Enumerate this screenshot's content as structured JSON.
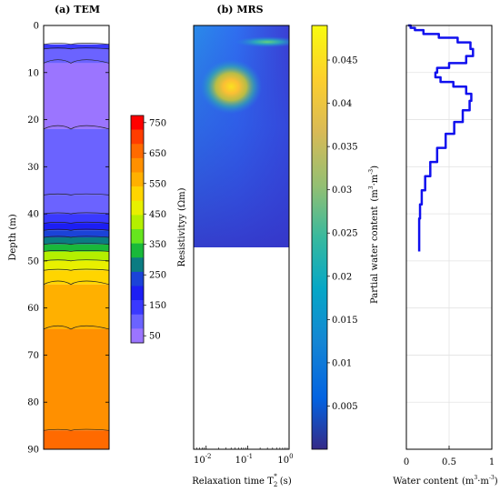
{
  "chart_data": [
    {
      "type": "area",
      "title": "(a) TEM",
      "ylabel": "Depth (m)",
      "ylim": [
        0,
        90
      ],
      "yticks": [
        0,
        10,
        20,
        30,
        40,
        50,
        60,
        70,
        80,
        90
      ],
      "series": [
        {
          "values": [
            {
              "top": 4,
              "bottom": 5,
              "resistivity": 130
            },
            {
              "top": 5,
              "bottom": 8,
              "resistivity": 110
            },
            {
              "top": 8,
              "bottom": 22,
              "resistivity": 60
            },
            {
              "top": 22,
              "bottom": 36,
              "resistivity": 90
            },
            {
              "top": 36,
              "bottom": 40,
              "resistivity": 110
            },
            {
              "top": 40,
              "bottom": 42,
              "resistivity": 150
            },
            {
              "top": 42,
              "bottom": 43.5,
              "resistivity": 200
            },
            {
              "top": 43.5,
              "bottom": 45,
              "resistivity": 250
            },
            {
              "top": 45,
              "bottom": 46.5,
              "resistivity": 300
            },
            {
              "top": 46.5,
              "bottom": 48,
              "resistivity": 350
            },
            {
              "top": 48,
              "bottom": 50,
              "resistivity": 420
            },
            {
              "top": 50,
              "bottom": 52,
              "resistivity": 470
            },
            {
              "top": 52,
              "bottom": 55,
              "resistivity": 520
            },
            {
              "top": 55,
              "bottom": 64.5,
              "resistivity": 560
            },
            {
              "top": 64.5,
              "bottom": 86,
              "resistivity": 620
            },
            {
              "top": 86,
              "bottom": 90,
              "resistivity": 650
            }
          ]
        }
      ],
      "colorbar": {
        "label": "Resistivityy (Ωm)",
        "ticks": [
          "750",
          "650",
          "550",
          "450",
          "350",
          "250",
          "150",
          "50"
        ],
        "colors": [
          "#ff0000",
          "#ff3d00",
          "#ff6a00",
          "#ff9000",
          "#ffb000",
          "#ffd500",
          "#e8f000",
          "#b4ef00",
          "#66e51e",
          "#19b93a",
          "#0b7c82",
          "#1b43d8",
          "#1c1ef4",
          "#3a39ff",
          "#6b63ff",
          "#9b75ff"
        ]
      }
    },
    {
      "type": "heatmap",
      "title": "(b) MRS",
      "xlabel": "Relaxation time T",
      "xlabel_sub": "2",
      "xlabel_sup": "*",
      "xlabel_unit": "(s)",
      "xscale": "log",
      "xlim": [
        0.005,
        1
      ],
      "xticks": [
        {
          "base": "10",
          "exp": "-2"
        },
        {
          "base": "10",
          "exp": "-1"
        },
        {
          "base": "10",
          "exp": "0"
        }
      ],
      "ylim": [
        0,
        90
      ],
      "data_depth_max": 48,
      "hotspots": [
        {
          "t2": 0.04,
          "depth": 13,
          "value": 0.044
        },
        {
          "t2": 0.3,
          "depth": 3.5,
          "value": 0.022
        }
      ],
      "colorbar": {
        "label": "Partial water content",
        "label_unit": "(m",
        "ticks": [
          "0.045",
          "0.04",
          "0.035",
          "0.03",
          "0.025",
          "0.02",
          "0.015",
          "0.01",
          "0.005"
        ],
        "range": [
          0,
          0.049
        ]
      }
    },
    {
      "type": "line",
      "xlabel": "Water content",
      "xlabel_unit": "(m",
      "xlim": [
        0,
        1
      ],
      "xticks": [
        "0",
        "0.5",
        "1"
      ],
      "ylim": [
        0,
        90
      ],
      "series": [
        {
          "x": [
            0.02,
            0.05,
            0.1,
            0.2,
            0.38,
            0.6,
            0.75,
            0.78,
            0.7,
            0.5,
            0.36,
            0.34,
            0.4,
            0.55,
            0.7,
            0.76,
            0.74,
            0.66,
            0.56,
            0.46,
            0.36,
            0.28,
            0.22,
            0.18,
            0.16,
            0.15,
            0.15,
            0.15
          ],
          "y": [
            0,
            0.5,
            1,
            1.8,
            2.6,
            3.6,
            5,
            6.5,
            8,
            9,
            10,
            11,
            12,
            13,
            14.5,
            16,
            18,
            20.5,
            23,
            26,
            29,
            32,
            35,
            38,
            41,
            44,
            46,
            48
          ]
        }
      ]
    }
  ]
}
